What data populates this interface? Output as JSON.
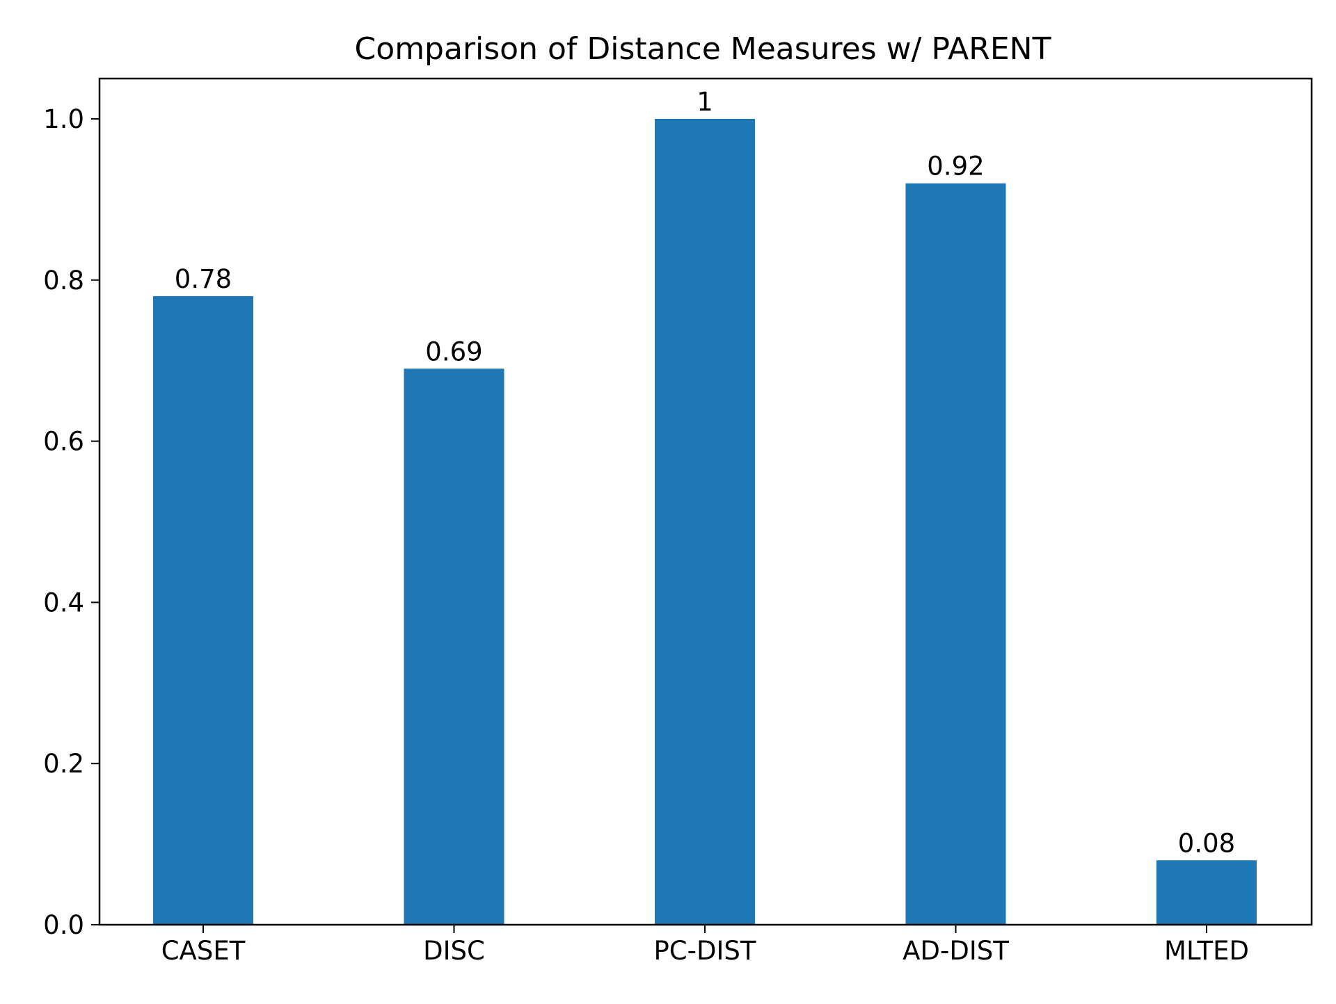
{
  "chart_data": {
    "type": "bar",
    "title": "Comparison of Distance Measures w/ PARENT",
    "xlabel": "",
    "ylabel": "",
    "categories": [
      "CASET",
      "DISC",
      "PC-DIST",
      "AD-DIST",
      "MLTED"
    ],
    "values": [
      0.78,
      0.69,
      1,
      0.92,
      0.08
    ],
    "value_labels": [
      "0.78",
      "0.69",
      "1",
      "0.92",
      "0.08"
    ],
    "ylim": [
      0,
      1.05
    ],
    "yticks": [
      0.0,
      0.2,
      0.4,
      0.6,
      0.8,
      1.0
    ],
    "ytick_labels": [
      "0.0",
      "0.2",
      "0.4",
      "0.6",
      "0.8",
      "1.0"
    ],
    "bar_color": "#1f77b4",
    "grid": false,
    "legend": false
  }
}
